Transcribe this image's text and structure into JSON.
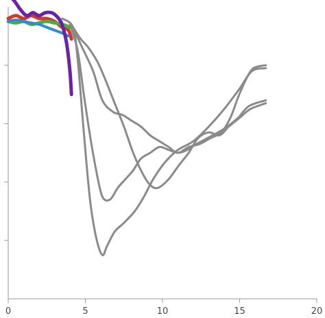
{
  "chart_data": {
    "type": "line",
    "title": "",
    "xlabel": "",
    "ylabel": "",
    "xlim": [
      0,
      20
    ],
    "ylim": [
      0,
      10
    ],
    "grid": false,
    "x_ticks": [
      0,
      5,
      10,
      15,
      20
    ],
    "x_tick_labels": [
      "0",
      "5",
      "10",
      "15",
      "20"
    ],
    "y_ticks": [
      2,
      4,
      6,
      8
    ],
    "colors": {
      "gray": "#8a8a8a",
      "red": "#d03a2a",
      "green": "#4caf3c",
      "blue": "#2f8ad8",
      "purple": "#6a23a6"
    },
    "series": [
      {
        "color": "#8a8a8a",
        "x": [
          3.5,
          4.2,
          4.5,
          4.9,
          5.3,
          5.7,
          6.1,
          6.4,
          6.9,
          7.5,
          8.2,
          8.8,
          9.4,
          10.2,
          11.0,
          12.0,
          13.0,
          14.0,
          15.0,
          15.8,
          16.7
        ],
        "y": [
          9.6,
          9.3,
          8.2,
          5.7,
          3.4,
          2.1,
          1.5,
          1.8,
          2.3,
          2.6,
          3.0,
          3.5,
          4.1,
          4.7,
          5.1,
          5.4,
          5.9,
          6.5,
          7.2,
          7.8,
          7.9
        ]
      },
      {
        "color": "#8a8a8a",
        "x": [
          4.0,
          4.5,
          4.9,
          5.3,
          5.7,
          6.1,
          6.6,
          7.1,
          7.6,
          8.1,
          8.6,
          9.2,
          9.8,
          10.4,
          11.0,
          11.6,
          12.2,
          12.9,
          13.6,
          14.2,
          14.9,
          15.6,
          16.7
        ],
        "y": [
          9.4,
          8.5,
          7.0,
          5.6,
          4.4,
          3.5,
          3.4,
          3.8,
          4.1,
          4.4,
          4.8,
          5.0,
          5.2,
          5.1,
          5.0,
          5.1,
          5.3,
          5.5,
          5.7,
          5.9,
          6.2,
          6.6,
          6.8
        ]
      },
      {
        "color": "#8a8a8a",
        "x": [
          4.2,
          4.7,
          5.2,
          5.8,
          6.3,
          6.9,
          7.5,
          8.1,
          8.7,
          9.2,
          9.7,
          10.4,
          11.1,
          11.7,
          12.3,
          13.0,
          13.7,
          14.3,
          15.0,
          15.7,
          16.7
        ],
        "y": [
          9.3,
          8.9,
          8.6,
          8.1,
          7.5,
          6.7,
          5.9,
          5.0,
          4.3,
          3.9,
          3.8,
          4.1,
          4.6,
          5.0,
          5.5,
          5.7,
          5.6,
          5.9,
          6.2,
          6.5,
          6.7
        ]
      },
      {
        "color": "#8a8a8a",
        "x": [
          4.2,
          4.8,
          5.5,
          6.1,
          6.8,
          7.4,
          8.0,
          8.6,
          9.2,
          9.8,
          10.4,
          11.0,
          11.7,
          12.4,
          13.1,
          13.8,
          14.4,
          14.9,
          15.4,
          15.9,
          16.7
        ],
        "y": [
          9.3,
          8.6,
          7.8,
          6.8,
          6.4,
          6.3,
          6.1,
          5.9,
          5.6,
          5.4,
          5.2,
          5.0,
          5.2,
          5.3,
          5.5,
          5.7,
          6.2,
          6.9,
          7.5,
          7.9,
          8.0
        ]
      },
      {
        "color": "#d03a2a",
        "x": [
          0.0,
          0.5,
          1.0,
          1.5,
          2.0,
          2.5,
          3.0,
          3.5,
          3.9,
          4.1
        ],
        "y": [
          9.6,
          9.7,
          9.6,
          9.7,
          9.6,
          9.6,
          9.5,
          9.3,
          9.2,
          8.9
        ]
      },
      {
        "color": "#4caf3c",
        "x": [
          0.0,
          0.5,
          1.0,
          1.5,
          2.0,
          2.5,
          3.0,
          3.5,
          4.0
        ],
        "y": [
          9.5,
          9.45,
          9.5,
          9.4,
          9.45,
          9.5,
          9.45,
          9.4,
          9.3
        ]
      },
      {
        "color": "#2f8ad8",
        "x": [
          0.0,
          0.5,
          1.0,
          1.5,
          2.0,
          2.5,
          3.0,
          3.5,
          3.9
        ],
        "y": [
          9.5,
          9.55,
          9.5,
          9.45,
          9.4,
          9.3,
          9.2,
          9.1,
          9.0
        ]
      },
      {
        "color": "#6a23a6",
        "x": [
          0.0,
          0.4,
          0.8,
          1.2,
          1.6,
          2.0,
          2.4,
          2.8,
          3.1,
          3.4,
          3.6,
          3.8,
          4.0,
          4.1
        ],
        "y": [
          10.4,
          10.2,
          9.9,
          9.7,
          9.8,
          9.7,
          9.8,
          9.8,
          9.7,
          9.5,
          9.2,
          8.7,
          7.8,
          7.0
        ]
      }
    ]
  }
}
